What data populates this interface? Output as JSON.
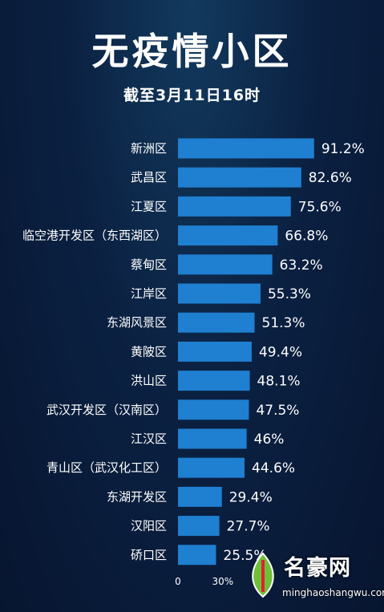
{
  "chart_data": {
    "type": "bar",
    "orientation": "horizontal",
    "title": "无疫情小区",
    "subtitle": "截至3月11日16时",
    "categories": [
      "新洲区",
      "武昌区",
      "江夏区",
      "临空港开发区（东西湖区）",
      "蔡甸区",
      "江岸区",
      "东湖风景区",
      "黄陂区",
      "洪山区",
      "武汉开发区（汉南区）",
      "江汉区",
      "青山区（武汉化工区）",
      "东湖开发区",
      "汉阳区",
      "硚口区"
    ],
    "values": [
      91.2,
      82.6,
      75.6,
      66.8,
      63.2,
      55.3,
      51.3,
      49.4,
      48.1,
      47.5,
      46,
      44.6,
      29.4,
      27.7,
      25.5
    ],
    "value_labels": [
      "91.2%",
      "82.6%",
      "75.6%",
      "66.8%",
      "63.2%",
      "55.3%",
      "51.3%",
      "49.4%",
      "48.1%",
      "47.5%",
      "46%",
      "44.6%",
      "29.4%",
      "27.7%",
      "25.5%"
    ],
    "x_ticks": [
      "0",
      "30%"
    ],
    "xlim": [
      0,
      100
    ],
    "bar_color": "#1f7fd0",
    "grid": false,
    "legend": "none"
  },
  "watermark": {
    "name": "名豪网",
    "url": "minghaoshangwu.com"
  },
  "colors": {
    "background": "#0b2142",
    "bar": "#1f7fd0",
    "text": "#ffffff"
  }
}
